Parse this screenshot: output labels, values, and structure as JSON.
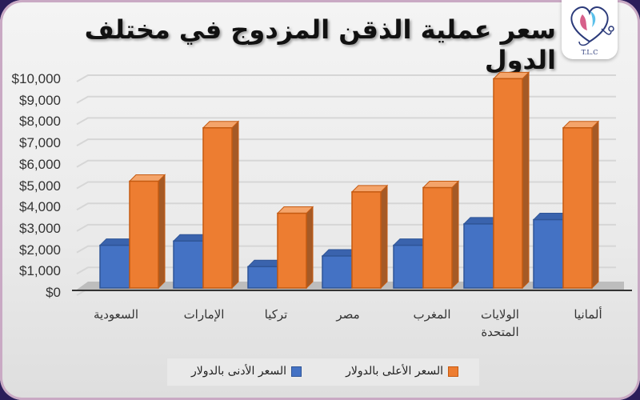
{
  "title": "سعر عملية الذقن المزدوج في مختلف الدول",
  "logo": {
    "text": "T.L.C",
    "icon": "heart-stethoscope-logo"
  },
  "colors": {
    "min_series": "#4472C4",
    "max_series": "#ED7D31",
    "background": "#eeeeee"
  },
  "yaxis": {
    "ticks": [
      "$10,000",
      "$9,000",
      "$8,000",
      "$7,000",
      "$6,000",
      "$5,000",
      "$4,000",
      "$3,000",
      "$2,000",
      "$1,000",
      "$0"
    ]
  },
  "xaxis": {
    "labels": [
      "السعودية",
      "الإمارات",
      "تركيا",
      "مصر",
      "المغرب",
      "الولايات المتحدة",
      "ألمانيا"
    ]
  },
  "legend": {
    "max_label": "السعر الأعلى بالدولار",
    "min_label": "السعر الأدنى بالدولار"
  },
  "chart_data": {
    "type": "bar",
    "title": "سعر عملية الذقن المزدوج في مختلف الدول",
    "categories": [
      "السعودية",
      "الإمارات",
      "تركيا",
      "مصر",
      "المغرب",
      "الولايات المتحدة",
      "ألمانيا"
    ],
    "series": [
      {
        "name": "السعر الأدنى بالدولار",
        "color": "#4472C4",
        "values": [
          2000,
          2200,
          1000,
          1500,
          2000,
          3000,
          3200
        ]
      },
      {
        "name": "السعر الأعلى بالدولار",
        "color": "#ED7D31",
        "values": [
          5000,
          7500,
          3500,
          4500,
          4700,
          9800,
          7500
        ]
      }
    ],
    "xlabel": "",
    "ylabel": "",
    "ylim": [
      0,
      10000
    ],
    "yticks": [
      "$0",
      "$1,000",
      "$2,000",
      "$3,000",
      "$4,000",
      "$5,000",
      "$6,000",
      "$7,000",
      "$8,000",
      "$9,000",
      "$10,000"
    ],
    "grid": true,
    "style": "3d-clustered-column",
    "legend_position": "bottom"
  }
}
